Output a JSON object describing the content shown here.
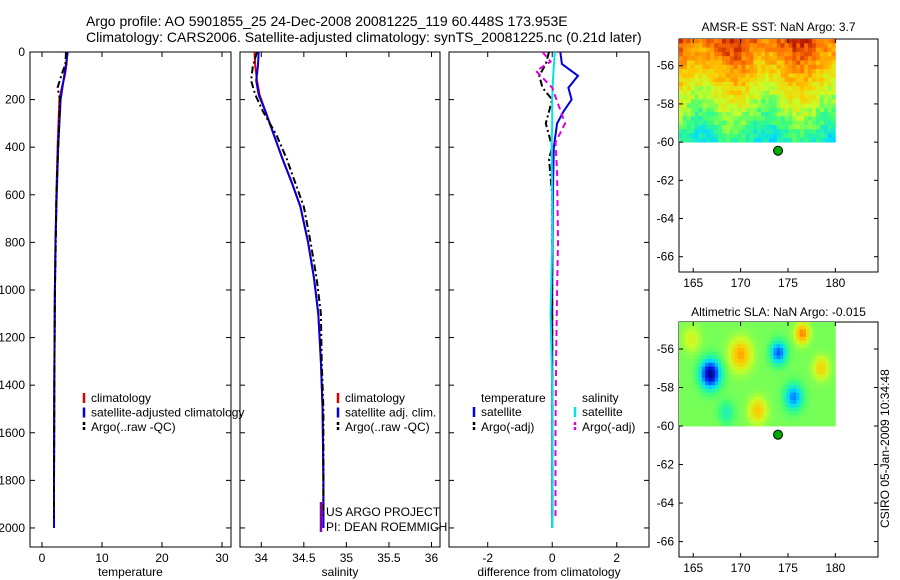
{
  "header": {
    "line1": "Argo profile: AO 5901855_25 24-Dec-2008 20081225_119 60.448S 173.953E",
    "line2": "Climatology: CARS2006. Satellite-adjusted climatology: synTS_20081225.nc (0.21d later)"
  },
  "stamp": "CSIRO 05-Jan-2009 10:34:48",
  "colors": {
    "climatology": "#dd0000",
    "satellite": "#0000dd",
    "argo": "#000000",
    "satellite_diff": "#00e5e5",
    "argo_sal_diff": "#dd00dd",
    "float_marker": "#00aa00"
  },
  "chart_data": [
    {
      "type": "line",
      "name": "temperature-profile",
      "xlabel": "temperature",
      "ylabel": "",
      "xlim": [
        -2,
        31.5
      ],
      "ylim": [
        2080,
        0
      ],
      "yreversed": true,
      "xticks": [
        "0",
        "10",
        "20",
        "30"
      ],
      "yticks": [
        "0",
        "200",
        "400",
        "600",
        "800",
        "1000",
        "1200",
        "1400",
        "1600",
        "1800",
        "2000"
      ],
      "legend": [
        "climatology",
        "satellite-adjusted climatology",
        "Argo(..raw -QC)"
      ],
      "legend_placement": "lower-right",
      "series": [
        {
          "name": "climatology",
          "color": "#dd0000",
          "dash": "solid",
          "x": [
            4.2,
            4.1,
            3.8,
            3.3,
            2.9,
            2.6,
            2.4,
            2.25,
            2.15,
            2.05,
            2.0,
            2.0
          ],
          "y": [
            0,
            50,
            100,
            150,
            200,
            400,
            600,
            800,
            1000,
            1400,
            1800,
            2000
          ]
        },
        {
          "name": "satellite-adjusted climatology",
          "color": "#0000dd",
          "dash": "solid",
          "x": [
            4.3,
            4.0,
            3.7,
            3.4,
            3.1,
            2.7,
            2.45,
            2.25,
            2.15,
            2.05,
            2.0,
            2.0
          ],
          "y": [
            0,
            50,
            100,
            150,
            200,
            400,
            600,
            800,
            1000,
            1400,
            1800,
            2000
          ]
        },
        {
          "name": "Argo(..raw -QC)",
          "color": "#000000",
          "dash": "dashdot",
          "x": [
            4.0,
            3.9,
            3.2,
            2.6,
            3.0,
            2.7,
            2.4,
            2.3,
            2.15,
            2.05,
            2.0,
            2.0
          ],
          "y": [
            0,
            50,
            100,
            150,
            200,
            400,
            600,
            800,
            1000,
            1400,
            1800,
            1960
          ]
        }
      ]
    },
    {
      "type": "line",
      "name": "salinity-profile",
      "xlabel": "salinity",
      "xlim": [
        33.75,
        36.1
      ],
      "ylim": [
        2080,
        0
      ],
      "yreversed": true,
      "xticks": [
        "34",
        "34.5",
        "35",
        "35.5",
        "36"
      ],
      "legend": [
        "climatology",
        "satellite adj. clim.",
        "Argo(..raw -QC)"
      ],
      "legend_placement": "lower-right",
      "annotations": [
        "US ARGO PROJECT",
        "PI: DEAN ROEMMICH"
      ],
      "series": [
        {
          "name": "climatology",
          "color": "#dd0000",
          "dash": "solid",
          "x": [
            33.92,
            33.93,
            33.95,
            33.98,
            34.05,
            34.15,
            34.25,
            34.36,
            34.46,
            34.55,
            34.62,
            34.67,
            34.7,
            34.72,
            34.73,
            34.73
          ],
          "y": [
            0,
            60,
            120,
            180,
            250,
            350,
            450,
            550,
            650,
            800,
            950,
            1100,
            1300,
            1500,
            1800,
            2000
          ]
        },
        {
          "name": "satellite adj. clim.",
          "color": "#0000dd",
          "dash": "solid",
          "x": [
            33.97,
            33.96,
            33.94,
            33.97,
            34.05,
            34.15,
            34.25,
            34.36,
            34.46,
            34.55,
            34.62,
            34.67,
            34.7,
            34.72,
            34.73,
            34.73
          ],
          "y": [
            0,
            60,
            120,
            180,
            250,
            350,
            450,
            550,
            650,
            800,
            950,
            1100,
            1300,
            1500,
            1800,
            2000
          ]
        },
        {
          "name": "Argo(..raw -QC)",
          "color": "#000000",
          "dash": "dashdot",
          "x": [
            33.95,
            33.9,
            33.88,
            33.93,
            34.02,
            34.18,
            34.3,
            34.4,
            34.5,
            34.58,
            34.65,
            34.7,
            34.71,
            34.73,
            34.73,
            34.73
          ],
          "y": [
            0,
            60,
            120,
            180,
            250,
            350,
            450,
            550,
            650,
            800,
            950,
            1100,
            1300,
            1500,
            1800,
            1960
          ]
        }
      ]
    },
    {
      "type": "line",
      "name": "difference-profile",
      "xlabel": "difference from climatology",
      "xlim": [
        -3.2,
        3.0
      ],
      "ylim": [
        2080,
        0
      ],
      "yreversed": true,
      "xticks": [
        "-2",
        "0",
        "2"
      ],
      "legend_left": [
        "temperature",
        "satellite",
        "Argo(-adj)"
      ],
      "legend_right": [
        "salinity",
        "satellite",
        "Argo(-adj)"
      ],
      "legend_placement": "lower",
      "series": [
        {
          "name": "temperature satellite",
          "color": "#0000dd",
          "dash": "solid",
          "x": [
            0.25,
            0.3,
            0.8,
            0.5,
            0.6,
            0.35,
            0.15,
            0.05,
            0.02,
            0.0,
            0.0,
            0.0
          ],
          "y": [
            0,
            50,
            100,
            150,
            200,
            250,
            300,
            400,
            600,
            1000,
            1500,
            2000
          ]
        },
        {
          "name": "temperature Argo(-adj)",
          "color": "#000000",
          "dash": "dashdot",
          "x": [
            -0.1,
            -0.2,
            -0.4,
            -0.3,
            0.0,
            -0.2,
            0.0,
            -0.1,
            0.0,
            0.0,
            0.0,
            0.0
          ],
          "y": [
            0,
            50,
            100,
            150,
            200,
            300,
            400,
            450,
            600,
            1000,
            1500,
            1960
          ]
        },
        {
          "name": "salinity satellite",
          "color": "#00e5e5",
          "dash": "solid",
          "x": [
            0.08,
            0.05,
            0.02,
            0.0,
            0.0,
            -0.02,
            0.0,
            0.0,
            -0.05,
            0.0,
            0.0,
            0.0
          ],
          "y": [
            0,
            60,
            120,
            200,
            300,
            400,
            600,
            800,
            1100,
            1400,
            1700,
            2000
          ]
        },
        {
          "name": "salinity Argo(-adj)",
          "color": "#dd00dd",
          "dash": "dashed",
          "x": [
            -0.3,
            -0.05,
            -0.5,
            0.0,
            0.4,
            0.1,
            0.15,
            0.18,
            0.15,
            0.12,
            0.1,
            0.1
          ],
          "y": [
            0,
            40,
            80,
            150,
            300,
            380,
            500,
            800,
            1000,
            1300,
            1600,
            1960
          ]
        }
      ]
    },
    {
      "type": "heatmap",
      "name": "amsr-e-sst-map",
      "title": "AMSR-E SST: NaN Argo: 3.7",
      "xlim": [
        163.5,
        184.5
      ],
      "ylim": [
        -66.8,
        -54.6
      ],
      "xticks": [
        "165",
        "170",
        "175",
        "180"
      ],
      "yticks": [
        "-56",
        "-58",
        "-60",
        "-62",
        "-64",
        "-66"
      ],
      "data_extent": {
        "lon": [
          163.5,
          180
        ],
        "lat": [
          -60,
          -54.6
        ]
      },
      "float_position": {
        "lon": 173.95,
        "lat": -60.45
      }
    },
    {
      "type": "heatmap",
      "name": "altimetric-sla-map",
      "title": "Altimetric SLA: NaN Argo: -0.015",
      "xlim": [
        163.5,
        184.5
      ],
      "ylim": [
        -66.8,
        -54.6
      ],
      "xticks": [
        "165",
        "170",
        "175",
        "180"
      ],
      "yticks": [
        "-56",
        "-58",
        "-60",
        "-62",
        "-64",
        "-66"
      ],
      "data_extent": {
        "lon": [
          163.5,
          180
        ],
        "lat": [
          -60,
          -54.6
        ]
      },
      "float_position": {
        "lon": 173.95,
        "lat": -60.45
      }
    }
  ]
}
